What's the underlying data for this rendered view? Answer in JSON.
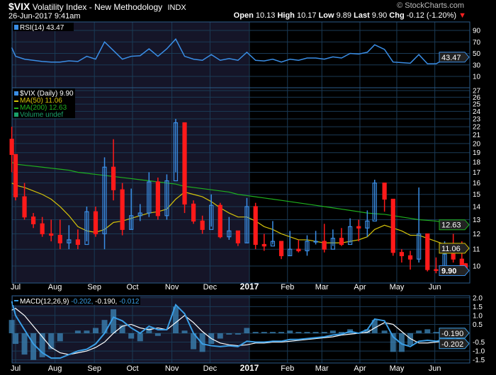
{
  "header": {
    "symbol": "$VIX",
    "name": "Volatility Index - New Methodology",
    "exchange": "INDX",
    "datetime": "26-Jun-2017 9:41am",
    "copyright": "© StockCharts.com",
    "open_label": "Open",
    "open": "10.13",
    "high_label": "High",
    "high": "10.17",
    "low_label": "Low",
    "low": "9.89",
    "last_label": "Last",
    "last": "9.90",
    "chg_label": "Chg",
    "chg": "-0.12 (-1.20%)",
    "chg_direction_icon": "triangle-down-red"
  },
  "colors": {
    "background": "#000000",
    "shaded_2016": "#151528",
    "grid": "#1a3a55",
    "up_candle": "#3a8ee6",
    "down_candle": "#ff1a1a",
    "ma50": "#d4c20a",
    "ma200": "#1fb11f",
    "rsi": "#3a8ee6",
    "macd": "#3a9ee6",
    "signal": "#ffffff",
    "histogram": "#3a7fb0"
  },
  "chart_data": [
    {
      "panel": "rsi",
      "type": "line",
      "legend": "RSI(14) 43.47",
      "value_badge": "43.47",
      "yticks": [
        "90",
        "70",
        "50",
        "30",
        "10"
      ],
      "ylim": [
        0,
        100
      ]
    },
    {
      "panel": "price",
      "type": "candlestick",
      "scale": "log",
      "ylim": [
        9.3,
        27.5
      ],
      "yticks": [
        "27",
        "26",
        "25",
        "24",
        "23",
        "22",
        "21",
        "20",
        "19",
        "18",
        "17",
        "16",
        "15",
        "14",
        "13",
        "12",
        "11",
        "10"
      ],
      "legend": [
        {
          "label": "$VIX (Daily) 9.90",
          "icon": "candle-icon"
        },
        {
          "label": "MA(50) 11.06",
          "icon": "line-icon"
        },
        {
          "label": "MA(200) 12.63",
          "icon": "line-icon"
        },
        {
          "label": "Volume undef",
          "icon": "volume-icon"
        }
      ],
      "badges": {
        "ma200": "12.63",
        "ma50": "11.06",
        "last": "9.90"
      },
      "xticks": [
        {
          "date": "2016-07-01",
          "label": "Jul"
        },
        {
          "date": "2016-08-01",
          "label": "Aug"
        },
        {
          "date": "2016-09-01",
          "label": "Sep"
        },
        {
          "date": "2016-10-01",
          "label": "Oct"
        },
        {
          "date": "2016-11-01",
          "label": "Nov"
        },
        {
          "date": "2016-12-01",
          "label": "Dec"
        },
        {
          "date": "2017-01-01",
          "label": "2017"
        },
        {
          "date": "2017-02-01",
          "label": "Feb"
        },
        {
          "date": "2017-03-01",
          "label": "Mar"
        },
        {
          "date": "2017-04-01",
          "label": "Apr"
        },
        {
          "date": "2017-05-01",
          "label": "May"
        },
        {
          "date": "2017-06-01",
          "label": "Jun"
        }
      ],
      "dates": [
        "2016-06-28",
        "2016-07-01",
        "2016-07-08",
        "2016-07-15",
        "2016-07-22",
        "2016-07-29",
        "2016-08-05",
        "2016-08-12",
        "2016-08-19",
        "2016-08-26",
        "2016-09-02",
        "2016-09-09",
        "2016-09-16",
        "2016-09-23",
        "2016-09-30",
        "2016-10-07",
        "2016-10-14",
        "2016-10-21",
        "2016-10-28",
        "2016-11-04",
        "2016-11-11",
        "2016-11-18",
        "2016-11-25",
        "2016-12-02",
        "2016-12-09",
        "2016-12-16",
        "2016-12-23",
        "2016-12-30",
        "2017-01-06",
        "2017-01-13",
        "2017-01-20",
        "2017-01-27",
        "2017-02-03",
        "2017-02-10",
        "2017-02-17",
        "2017-02-24",
        "2017-03-03",
        "2017-03-10",
        "2017-03-17",
        "2017-03-24",
        "2017-03-31",
        "2017-04-07",
        "2017-04-13",
        "2017-04-21",
        "2017-04-28",
        "2017-05-05",
        "2017-05-12",
        "2017-05-19",
        "2017-05-26",
        "2017-06-02",
        "2017-06-09",
        "2017-06-16",
        "2017-06-23",
        "2017-06-26"
      ],
      "close": [
        18.8,
        14.8,
        13.2,
        12.7,
        12.0,
        11.9,
        11.4,
        11.6,
        11.3,
        13.6,
        12.0,
        17.5,
        15.4,
        12.3,
        13.3,
        13.5,
        16.1,
        13.3,
        16.2,
        22.5,
        14.2,
        12.9,
        12.3,
        14.1,
        11.8,
        12.2,
        11.4,
        14.0,
        11.3,
        11.2,
        11.5,
        10.6,
        11.0,
        10.9,
        11.5,
        11.5,
        11.0,
        11.7,
        11.3,
        12.5,
        12.4,
        12.9,
        16.0,
        14.6,
        10.8,
        10.6,
        10.4,
        12.0,
        9.8,
        9.75,
        10.7,
        10.4,
        10.0,
        9.9
      ],
      "high": [
        22.0,
        16.5,
        16.0,
        13.5,
        13.2,
        13.0,
        13.0,
        12.6,
        12.3,
        14.0,
        14.0,
        18.5,
        20.5,
        16.0,
        15.5,
        14.2,
        17.0,
        16.5,
        16.8,
        23.0,
        21.0,
        14.5,
        13.3,
        15.0,
        14.3,
        13.2,
        12.2,
        14.7,
        14.3,
        12.0,
        12.9,
        11.5,
        12.2,
        11.6,
        11.9,
        12.2,
        12.7,
        12.3,
        12.4,
        13.1,
        13.0,
        13.7,
        16.3,
        16.0,
        14.0,
        11.0,
        10.9,
        15.6,
        12.0,
        10.5,
        11.5,
        12.0,
        11.5,
        10.17
      ],
      "low": [
        17.0,
        14.5,
        13.0,
        12.4,
        11.8,
        11.5,
        11.0,
        11.0,
        11.0,
        11.5,
        11.8,
        11.0,
        14.5,
        11.9,
        12.3,
        12.9,
        13.2,
        13.0,
        13.0,
        17.0,
        13.5,
        12.7,
        12.0,
        12.5,
        11.7,
        11.6,
        11.2,
        11.4,
        11.0,
        10.9,
        11.3,
        10.4,
        10.6,
        10.8,
        10.6,
        11.3,
        10.8,
        11.2,
        11.2,
        11.4,
        11.5,
        11.8,
        13.0,
        13.6,
        10.6,
        10.2,
        9.8,
        10.2,
        9.7,
        9.6,
        9.7,
        10.2,
        9.9,
        9.89
      ],
      "first_open": 20.5,
      "last_open": 10.13,
      "ma50": [
        16.0,
        15.8,
        15.6,
        15.3,
        15.0,
        14.6,
        14.0,
        13.3,
        12.5,
        12.2,
        12.1,
        12.3,
        12.8,
        12.9,
        13.1,
        13.3,
        13.5,
        13.6,
        13.8,
        14.6,
        15.2,
        15.0,
        14.8,
        14.4,
        13.9,
        13.5,
        13.2,
        13.2,
        12.9,
        12.5,
        12.3,
        12.0,
        11.8,
        11.6,
        11.6,
        11.5,
        11.4,
        11.4,
        11.4,
        11.5,
        11.6,
        11.8,
        12.3,
        12.6,
        12.4,
        12.2,
        11.9,
        11.9,
        11.7,
        11.5,
        11.3,
        11.2,
        11.1,
        11.06
      ],
      "ma200": [
        18.0,
        17.8,
        17.7,
        17.6,
        17.5,
        17.4,
        17.3,
        17.2,
        17.0,
        16.9,
        16.8,
        16.7,
        16.6,
        16.5,
        16.4,
        16.3,
        16.2,
        16.1,
        16.0,
        15.9,
        15.7,
        15.6,
        15.5,
        15.4,
        15.3,
        15.2,
        15.0,
        14.9,
        14.8,
        14.7,
        14.6,
        14.5,
        14.4,
        14.3,
        14.2,
        14.1,
        14.0,
        13.9,
        13.8,
        13.7,
        13.6,
        13.5,
        13.45,
        13.4,
        13.3,
        13.2,
        13.1,
        13.0,
        12.95,
        12.9,
        12.8,
        12.75,
        12.7,
        12.63
      ],
      "rsi": [
        60,
        45,
        40,
        38,
        36,
        35,
        35,
        37,
        36,
        45,
        40,
        70,
        55,
        40,
        45,
        46,
        58,
        45,
        58,
        75,
        45,
        40,
        38,
        48,
        38,
        41,
        38,
        52,
        38,
        37,
        40,
        35,
        40,
        38,
        42,
        42,
        40,
        44,
        42,
        50,
        49,
        52,
        65,
        57,
        35,
        34,
        33,
        48,
        32,
        32,
        40,
        38,
        40,
        43.47
      ]
    },
    {
      "panel": "macd",
      "type": "line+histogram",
      "legend_name": "MACD(12,26,9)",
      "legend_values": [
        "-0.202",
        "-0.190",
        "-0.012"
      ],
      "badges": [
        "-0.190",
        "-0.202"
      ],
      "yticks": [
        "2.0",
        "1.5",
        "1.0",
        "0.5",
        "0",
        "-0.5",
        "-1.0",
        "-1.5"
      ],
      "ylim": [
        -1.6,
        2.0
      ],
      "macd": [
        1.8,
        1.0,
        0.2,
        -0.6,
        -1.1,
        -1.4,
        -1.4,
        -1.2,
        -1.0,
        -0.9,
        -0.6,
        0.0,
        0.9,
        0.7,
        0.3,
        0.0,
        0.4,
        0.2,
        0.2,
        1.6,
        1.1,
        0.0,
        -0.6,
        -0.7,
        -0.75,
        -0.7,
        -0.75,
        -0.45,
        -0.5,
        -0.5,
        -0.45,
        -0.45,
        -0.35,
        -0.35,
        -0.3,
        -0.25,
        -0.2,
        -0.1,
        -0.05,
        0.1,
        0.0,
        0.2,
        0.8,
        0.7,
        -0.2,
        -0.6,
        -0.75,
        -0.45,
        -0.4,
        -0.45,
        -0.35,
        -0.25,
        -0.2,
        -0.202
      ],
      "signal": [
        1.3,
        1.4,
        1.0,
        0.4,
        -0.2,
        -0.8,
        -1.1,
        -1.2,
        -1.1,
        -1.0,
        -0.8,
        -0.5,
        0.0,
        0.4,
        0.5,
        0.3,
        0.2,
        0.3,
        0.2,
        0.6,
        1.0,
        0.6,
        0.1,
        -0.3,
        -0.55,
        -0.65,
        -0.7,
        -0.65,
        -0.55,
        -0.55,
        -0.5,
        -0.5,
        -0.45,
        -0.4,
        -0.35,
        -0.3,
        -0.25,
        -0.2,
        -0.1,
        -0.05,
        0.0,
        0.05,
        0.3,
        0.6,
        0.5,
        0.1,
        -0.3,
        -0.55,
        -0.55,
        -0.5,
        -0.45,
        -0.35,
        -0.25,
        -0.19
      ]
    }
  ]
}
